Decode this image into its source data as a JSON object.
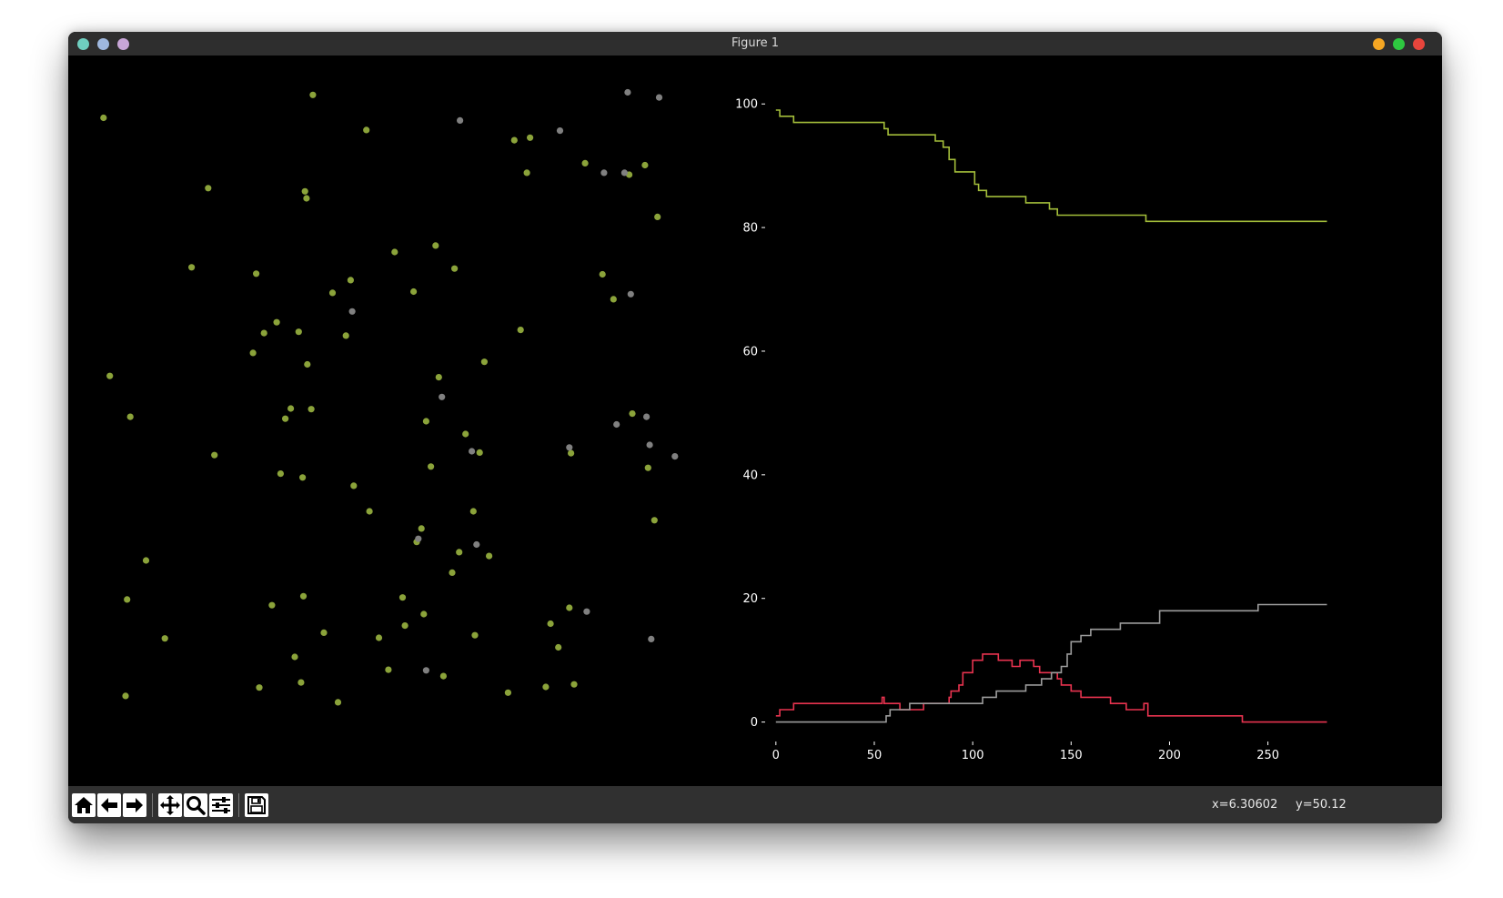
{
  "window": {
    "title": "Figure 1",
    "buttons_left": [
      "close",
      "minimize",
      "maximize"
    ],
    "buttons_right": [
      "minimize",
      "maximize",
      "close"
    ],
    "colors": {
      "left1": "#6fcfc0",
      "left2": "#9fb8df",
      "left3": "#c8a6d8",
      "right1": "#f5a623",
      "right2": "#2ec840",
      "right3": "#e8453c"
    }
  },
  "toolbar": {
    "icons": [
      "home-icon",
      "back-arrow-icon",
      "forward-arrow-icon",
      "pan-icon",
      "zoom-icon",
      "configure-subplots-icon",
      "save-icon"
    ],
    "x_readout": "x=6.30602",
    "y_readout": "y=50.12"
  },
  "chart_data": [
    {
      "type": "scatter",
      "axes_visible": false,
      "series": [
        {
          "color": "#8ba33a",
          "points": [
            [
              2.4,
              92.8
            ],
            [
              3.2,
              52.4
            ],
            [
              5.4,
              17.4
            ],
            [
              5.2,
              2.3
            ],
            [
              5.8,
              46.0
            ],
            [
              7.8,
              23.5
            ],
            [
              10.2,
              11.3
            ],
            [
              13.6,
              69.4
            ],
            [
              15.7,
              81.8
            ],
            [
              16.5,
              40.0
            ],
            [
              21.4,
              56.0
            ],
            [
              21.8,
              68.4
            ],
            [
              22.2,
              3.6
            ],
            [
              22.8,
              59.1
            ],
            [
              23.8,
              16.5
            ],
            [
              24.4,
              60.8
            ],
            [
              24.9,
              37.1
            ],
            [
              25.5,
              45.7
            ],
            [
              26.2,
              47.3
            ],
            [
              26.7,
              8.4
            ],
            [
              27.2,
              59.3
            ],
            [
              27.5,
              4.4
            ],
            [
              27.7,
              36.5
            ],
            [
              27.8,
              17.9
            ],
            [
              28.0,
              81.3
            ],
            [
              28.2,
              80.2
            ],
            [
              28.3,
              54.2
            ],
            [
              28.8,
              47.2
            ],
            [
              29.0,
              96.4
            ],
            [
              30.4,
              12.2
            ],
            [
              31.5,
              65.4
            ],
            [
              32.2,
              1.3
            ],
            [
              33.2,
              58.7
            ],
            [
              33.8,
              67.4
            ],
            [
              34.2,
              35.2
            ],
            [
              35.8,
              90.9
            ],
            [
              36.2,
              31.2
            ],
            [
              37.4,
              11.4
            ],
            [
              38.6,
              6.4
            ],
            [
              39.4,
              71.8
            ],
            [
              40.4,
              17.7
            ],
            [
              40.7,
              13.3
            ],
            [
              41.8,
              65.6
            ],
            [
              42.2,
              26.4
            ],
            [
              42.8,
              28.5
            ],
            [
              43.1,
              15.1
            ],
            [
              43.4,
              45.3
            ],
            [
              44.0,
              38.2
            ],
            [
              44.6,
              72.8
            ],
            [
              45.0,
              52.2
            ],
            [
              45.6,
              5.4
            ],
            [
              46.7,
              21.6
            ],
            [
              47.0,
              69.2
            ],
            [
              47.6,
              24.8
            ],
            [
              48.4,
              43.3
            ],
            [
              49.4,
              31.2
            ],
            [
              49.6,
              11.8
            ],
            [
              50.2,
              40.4
            ],
            [
              50.8,
              54.6
            ],
            [
              51.4,
              24.2
            ],
            [
              53.8,
              2.8
            ],
            [
              54.6,
              89.3
            ],
            [
              55.4,
              59.6
            ],
            [
              56.2,
              84.2
            ],
            [
              56.6,
              89.7
            ],
            [
              58.6,
              3.7
            ],
            [
              59.2,
              13.6
            ],
            [
              60.2,
              9.9
            ],
            [
              61.6,
              16.1
            ],
            [
              61.8,
              40.3
            ],
            [
              62.2,
              4.1
            ],
            [
              63.6,
              85.7
            ],
            [
              65.8,
              68.3
            ],
            [
              67.2,
              64.4
            ],
            [
              69.2,
              83.9
            ],
            [
              69.6,
              46.5
            ],
            [
              71.2,
              85.4
            ],
            [
              71.6,
              38.0
            ],
            [
              72.4,
              29.8
            ],
            [
              72.8,
              77.3
            ]
          ]
        },
        {
          "color": "#808080",
          "points": [
            [
              34.0,
              62.5
            ],
            [
              42.4,
              26.9
            ],
            [
              43.4,
              6.3
            ],
            [
              45.4,
              49.1
            ],
            [
              47.7,
              92.4
            ],
            [
              49.2,
              40.6
            ],
            [
              49.8,
              26.0
            ],
            [
              60.4,
              90.8
            ],
            [
              61.6,
              41.2
            ],
            [
              63.8,
              15.5
            ],
            [
              66.0,
              84.2
            ],
            [
              67.6,
              44.8
            ],
            [
              68.6,
              84.2
            ],
            [
              69.4,
              65.2
            ],
            [
              71.4,
              46.0
            ],
            [
              71.8,
              41.6
            ],
            [
              72.0,
              11.2
            ],
            [
              75.0,
              39.8
            ],
            [
              73.0,
              96.0
            ],
            [
              69.0,
              96.8
            ]
          ]
        }
      ]
    },
    {
      "type": "line",
      "xlim": [
        -5,
        283
      ],
      "ylim": [
        -3,
        101.5
      ],
      "x_ticks": [
        0,
        50,
        100,
        150,
        200,
        250
      ],
      "y_ticks": [
        0,
        20,
        40,
        60,
        80,
        100
      ],
      "x_tick_labels": [
        "0",
        "50",
        "100",
        "150",
        "200",
        "250"
      ],
      "y_tick_labels": [
        "0",
        "20",
        "40",
        "60",
        "80",
        "100"
      ],
      "series": [
        {
          "color": "#a3bd3a",
          "x": [
            0,
            1,
            2,
            7,
            9,
            53,
            55,
            57,
            77,
            81,
            83,
            85,
            88,
            91,
            95,
            101,
            103,
            107,
            127,
            135,
            139,
            143,
            187,
            188,
            280
          ],
          "y": [
            99,
            99,
            98,
            98,
            97,
            97,
            96,
            95,
            95,
            94,
            94,
            93,
            91,
            89,
            89,
            87,
            86,
            85,
            84,
            84,
            83,
            82,
            82,
            81,
            81
          ]
        },
        {
          "color": "#e8334f",
          "x": [
            0,
            2,
            7,
            9,
            53,
            54,
            55,
            63,
            74,
            75,
            88,
            89,
            93,
            95,
            100,
            105,
            107,
            113,
            118,
            120,
            124,
            127,
            131,
            134,
            137,
            143,
            145,
            150,
            155,
            170,
            178,
            186,
            187,
            188,
            189,
            237,
            280
          ],
          "y": [
            1,
            2,
            2,
            3,
            3,
            4,
            3,
            2,
            2,
            3,
            4,
            5,
            6,
            8,
            10,
            11,
            11,
            10,
            10,
            9,
            10,
            10,
            9,
            8,
            8,
            7,
            6,
            5,
            4,
            3,
            2,
            2,
            3,
            3,
            1,
            0,
            0
          ],
          "shape": "steps"
        },
        {
          "color": "#9c9c9c",
          "x": [
            0,
            54,
            56,
            58,
            63,
            68,
            75,
            95,
            105,
            112,
            127,
            135,
            140,
            145,
            148,
            150,
            155,
            160,
            175,
            185,
            195,
            205,
            245,
            280
          ],
          "y": [
            0,
            0,
            1,
            2,
            2,
            3,
            3,
            3,
            4,
            5,
            6,
            7,
            8,
            9,
            11,
            13,
            14,
            15,
            16,
            16,
            18,
            18,
            19,
            19
          ],
          "shape": "steps"
        }
      ],
      "axis_color": "#ffffff",
      "background": "#000000"
    }
  ]
}
